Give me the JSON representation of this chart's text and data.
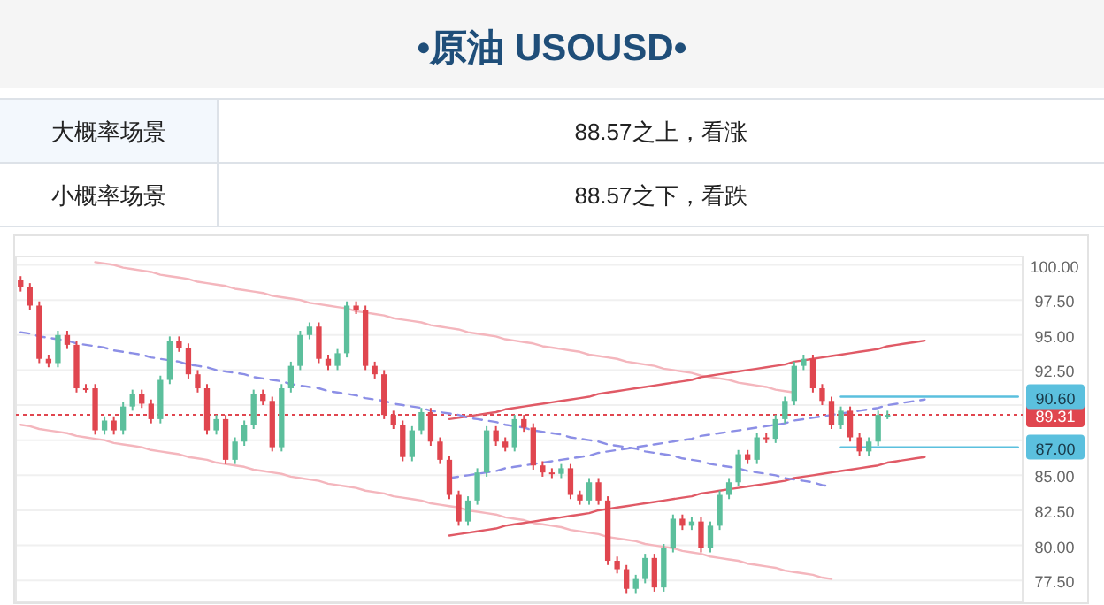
{
  "chart_data": {
    "type": "candlestick",
    "title": "•原油  USOUSD•",
    "annotations": [
      "大概率场景",
      "88.57之上，看涨",
      "小概率场景",
      "88.57之下，看跌"
    ],
    "categories": [
      null,
      null,
      null,
      null,
      null,
      null,
      null,
      null,
      null,
      null,
      null,
      null,
      null,
      null,
      null,
      null,
      null,
      null,
      null,
      null,
      null,
      null,
      null,
      null,
      null,
      null,
      null,
      null,
      null,
      null,
      null,
      null,
      null,
      null,
      null,
      null,
      null,
      null,
      null,
      null,
      null,
      null,
      null,
      null,
      null,
      null,
      null,
      null,
      null,
      null,
      null,
      null,
      null,
      null,
      null,
      null,
      null,
      null,
      null,
      null,
      null,
      null,
      null,
      null,
      null,
      null,
      null,
      null,
      null,
      null,
      null,
      null,
      null,
      null,
      null,
      null,
      null,
      null,
      null,
      null,
      null,
      null,
      null,
      null,
      null,
      null,
      null,
      null,
      null,
      null,
      null,
      null,
      null,
      null,
      null,
      null,
      null,
      null,
      null,
      null,
      null,
      null,
      null,
      null,
      null,
      null,
      null,
      null
    ],
    "ohlc": [
      [
        98.9,
        99.2,
        98.1,
        98.4
      ],
      [
        98.4,
        98.7,
        96.8,
        97.1
      ],
      [
        97.1,
        97.4,
        93.0,
        93.3
      ],
      [
        93.3,
        93.6,
        92.7,
        93.0
      ],
      [
        93.0,
        95.3,
        92.7,
        95.0
      ],
      [
        95.0,
        95.3,
        94.0,
        94.3
      ],
      [
        94.3,
        94.6,
        90.9,
        91.2
      ],
      [
        91.2,
        91.5,
        90.9,
        91.2
      ],
      [
        91.2,
        91.5,
        87.9,
        88.2
      ],
      [
        88.2,
        89.2,
        87.9,
        88.9
      ],
      [
        88.9,
        89.2,
        87.9,
        88.2
      ],
      [
        88.2,
        90.2,
        87.9,
        89.9
      ],
      [
        89.9,
        91.1,
        89.6,
        90.8
      ],
      [
        90.8,
        91.1,
        89.8,
        90.1
      ],
      [
        90.1,
        90.4,
        88.7,
        89.0
      ],
      [
        89.0,
        92.1,
        88.7,
        91.8
      ],
      [
        91.8,
        94.9,
        91.5,
        94.6
      ],
      [
        94.6,
        94.9,
        93.8,
        94.1
      ],
      [
        94.1,
        94.4,
        91.9,
        92.2
      ],
      [
        92.2,
        92.5,
        90.9,
        91.2
      ],
      [
        91.2,
        91.5,
        87.9,
        88.2
      ],
      [
        88.2,
        89.3,
        87.9,
        89.0
      ],
      [
        89.0,
        89.3,
        85.8,
        86.1
      ],
      [
        86.1,
        87.7,
        85.8,
        87.4
      ],
      [
        87.4,
        88.9,
        87.1,
        88.6
      ],
      [
        88.6,
        91.1,
        88.3,
        90.8
      ],
      [
        90.8,
        91.1,
        90.0,
        90.3
      ],
      [
        90.3,
        90.6,
        86.7,
        87.0
      ],
      [
        87.0,
        91.5,
        86.7,
        91.2
      ],
      [
        91.2,
        93.1,
        90.9,
        92.8
      ],
      [
        92.8,
        95.3,
        92.5,
        95.0
      ],
      [
        95.0,
        95.9,
        94.7,
        95.6
      ],
      [
        95.6,
        95.9,
        93.0,
        93.3
      ],
      [
        93.3,
        93.6,
        92.5,
        92.8
      ],
      [
        92.8,
        94.0,
        92.5,
        93.7
      ],
      [
        93.7,
        97.4,
        93.4,
        97.1
      ],
      [
        97.1,
        97.4,
        96.5,
        96.8
      ],
      [
        96.8,
        97.1,
        92.5,
        92.8
      ],
      [
        92.8,
        93.1,
        91.9,
        92.2
      ],
      [
        92.2,
        92.5,
        89.0,
        89.3
      ],
      [
        89.3,
        89.6,
        88.3,
        88.6
      ],
      [
        88.6,
        88.9,
        86.0,
        86.3
      ],
      [
        86.3,
        88.5,
        86.0,
        88.2
      ],
      [
        88.2,
        89.8,
        87.9,
        89.5
      ],
      [
        89.5,
        89.8,
        87.1,
        87.4
      ],
      [
        87.4,
        87.7,
        85.8,
        86.1
      ],
      [
        86.1,
        86.4,
        83.3,
        83.6
      ],
      [
        83.6,
        83.9,
        81.4,
        81.7
      ],
      [
        81.7,
        83.5,
        81.4,
        83.2
      ],
      [
        83.2,
        85.5,
        82.9,
        85.2
      ],
      [
        85.2,
        88.5,
        84.9,
        88.2
      ],
      [
        88.2,
        88.5,
        87.1,
        87.4
      ],
      [
        87.4,
        87.7,
        86.7,
        87.0
      ],
      [
        87.0,
        89.3,
        86.7,
        89.0
      ],
      [
        89.0,
        89.3,
        88.1,
        88.4
      ],
      [
        88.4,
        88.7,
        85.4,
        85.7
      ],
      [
        85.7,
        86.0,
        84.9,
        85.2
      ],
      [
        85.2,
        85.5,
        84.8,
        85.1
      ],
      [
        85.1,
        85.8,
        84.8,
        85.5
      ],
      [
        85.5,
        85.8,
        83.3,
        83.6
      ],
      [
        83.6,
        83.9,
        82.9,
        83.2
      ],
      [
        83.2,
        84.8,
        82.9,
        84.5
      ],
      [
        84.5,
        84.8,
        82.9,
        83.2
      ],
      [
        83.2,
        83.5,
        78.6,
        78.9
      ],
      [
        78.9,
        79.2,
        78.0,
        78.3
      ],
      [
        78.3,
        78.6,
        76.6,
        76.9
      ],
      [
        76.9,
        77.9,
        76.6,
        77.6
      ],
      [
        77.6,
        79.4,
        77.3,
        79.1
      ],
      [
        79.1,
        79.4,
        76.7,
        77.0
      ],
      [
        77.0,
        80.1,
        76.7,
        79.8
      ],
      [
        79.8,
        82.2,
        79.5,
        81.9
      ],
      [
        81.9,
        82.2,
        81.1,
        81.4
      ],
      [
        81.4,
        82.0,
        81.1,
        81.7
      ],
      [
        81.7,
        82.0,
        79.5,
        79.8
      ],
      [
        79.8,
        81.7,
        79.5,
        81.4
      ],
      [
        81.4,
        83.9,
        81.1,
        83.6
      ],
      [
        83.6,
        84.8,
        83.3,
        84.5
      ],
      [
        84.5,
        86.8,
        84.2,
        86.5
      ],
      [
        86.5,
        86.8,
        85.8,
        86.1
      ],
      [
        86.1,
        88.0,
        85.8,
        87.7
      ],
      [
        87.7,
        88.0,
        87.3,
        87.6
      ],
      [
        87.6,
        89.3,
        87.3,
        89.0
      ],
      [
        89.0,
        90.6,
        88.7,
        90.3
      ],
      [
        90.3,
        93.1,
        90.0,
        92.8
      ],
      [
        92.8,
        93.6,
        92.5,
        93.3
      ],
      [
        93.3,
        93.6,
        90.9,
        91.2
      ],
      [
        91.2,
        91.5,
        90.0,
        90.3
      ],
      [
        90.3,
        90.6,
        88.3,
        88.6
      ],
      [
        88.6,
        89.9,
        88.3,
        89.6
      ],
      [
        89.6,
        89.9,
        87.4,
        87.7
      ],
      [
        87.7,
        88.0,
        86.4,
        86.7
      ],
      [
        86.7,
        87.7,
        86.4,
        87.4
      ],
      [
        87.4,
        89.6,
        87.1,
        89.3
      ],
      [
        89.3,
        89.6,
        89.0,
        89.3
      ],
      null,
      null,
      null,
      null,
      null,
      null,
      null,
      null,
      null,
      null,
      null,
      null,
      null,
      null
    ],
    "colors": [
      "#e0464f",
      "#e0464f",
      "#e0464f",
      "#e0464f",
      "#5cbf9c",
      "#e0464f",
      "#e0464f",
      "#e0464f",
      "#e0464f",
      "#5cbf9c",
      "#e0464f",
      "#5cbf9c",
      "#5cbf9c",
      "#e0464f",
      "#e0464f",
      "#5cbf9c",
      "#5cbf9c",
      "#e0464f",
      "#e0464f",
      "#e0464f",
      "#e0464f",
      "#5cbf9c",
      "#e0464f",
      "#5cbf9c",
      "#5cbf9c",
      "#5cbf9c",
      "#e0464f",
      "#e0464f",
      "#5cbf9c",
      "#5cbf9c",
      "#5cbf9c",
      "#5cbf9c",
      "#e0464f",
      "#e0464f",
      "#5cbf9c",
      "#5cbf9c",
      "#e0464f",
      "#e0464f",
      "#e0464f",
      "#e0464f",
      "#e0464f",
      "#e0464f",
      "#5cbf9c",
      "#5cbf9c",
      "#e0464f",
      "#e0464f",
      "#e0464f",
      "#e0464f",
      "#5cbf9c",
      "#5cbf9c",
      "#5cbf9c",
      "#e0464f",
      "#e0464f",
      "#5cbf9c",
      "#e0464f",
      "#e0464f",
      "#e0464f",
      "#e0464f",
      "#5cbf9c",
      "#e0464f",
      "#e0464f",
      "#5cbf9c",
      "#e0464f",
      "#e0464f",
      "#e0464f",
      "#e0464f",
      "#5cbf9c",
      "#5cbf9c",
      "#e0464f",
      "#5cbf9c",
      "#5cbf9c",
      "#e0464f",
      "#5cbf9c",
      "#e0464f",
      "#5cbf9c",
      "#5cbf9c",
      "#5cbf9c",
      "#5cbf9c",
      "#e0464f",
      "#5cbf9c",
      "#e0464f",
      "#5cbf9c",
      "#5cbf9c",
      "#5cbf9c",
      "#5cbf9c",
      "#e0464f",
      "#e0464f",
      "#e0464f",
      "#5cbf9c",
      "#e0464f",
      "#e0464f",
      "#5cbf9c",
      "#5cbf9c",
      "#5cbf9c",
      null,
      null,
      null,
      null,
      null,
      null,
      null,
      null,
      null,
      null,
      null,
      null,
      null,
      null
    ],
    "series": [
      {
        "type": "line",
        "color": "#f4b6bd",
        "line_style": "solid",
        "values": [
          null,
          null,
          null,
          null,
          null,
          null,
          null,
          null,
          100.2,
          100.1,
          100.0,
          99.8,
          99.7,
          99.6,
          99.5,
          99.3,
          99.2,
          99.1,
          99.0,
          98.8,
          98.7,
          98.6,
          98.5,
          98.3,
          98.2,
          98.1,
          98.0,
          97.8,
          97.7,
          97.6,
          97.5,
          97.3,
          97.2,
          97.1,
          97.0,
          96.9,
          96.7,
          96.6,
          96.5,
          96.4,
          96.2,
          96.1,
          96.0,
          95.9,
          95.7,
          95.6,
          95.5,
          95.4,
          95.2,
          95.1,
          95.0,
          94.9,
          94.7,
          94.6,
          94.5,
          94.4,
          94.2,
          94.1,
          94.0,
          93.9,
          93.8,
          93.6,
          93.5,
          93.4,
          93.3,
          93.1,
          93.0,
          92.9,
          92.8,
          92.6,
          92.5,
          92.4,
          92.3,
          92.1,
          92.0,
          91.9,
          91.8,
          91.6,
          91.5,
          91.4,
          91.3,
          91.1,
          91.0,
          90.9,
          null,
          null,
          null,
          null,
          null,
          null,
          null,
          null,
          null,
          null,
          null,
          null,
          null,
          null,
          null,
          null,
          null,
          null,
          null,
          null,
          null,
          null,
          null,
          null
        ]
      },
      {
        "type": "line",
        "color": "#f4b6bd",
        "line_style": "solid",
        "values": [
          88.6,
          88.5,
          88.3,
          88.2,
          88.1,
          88.0,
          87.8,
          87.7,
          87.6,
          87.5,
          87.3,
          87.2,
          87.1,
          87.0,
          86.8,
          86.7,
          86.6,
          86.5,
          86.3,
          86.2,
          86.1,
          85.9,
          85.8,
          85.7,
          85.6,
          85.4,
          85.3,
          85.2,
          85.1,
          84.9,
          84.8,
          84.7,
          84.6,
          84.4,
          84.3,
          84.2,
          84.1,
          83.9,
          83.8,
          83.7,
          83.5,
          83.4,
          83.3,
          83.2,
          83.0,
          82.9,
          82.8,
          82.7,
          82.5,
          82.4,
          82.3,
          82.2,
          82.0,
          81.9,
          81.8,
          81.6,
          81.5,
          81.4,
          81.3,
          81.1,
          81.0,
          80.9,
          80.8,
          80.6,
          80.5,
          80.4,
          80.3,
          80.1,
          80.0,
          79.9,
          79.8,
          79.6,
          79.5,
          79.4,
          79.2,
          79.1,
          79.0,
          78.9,
          78.7,
          78.6,
          78.5,
          78.4,
          78.2,
          78.1,
          78.0,
          77.9,
          77.7,
          77.6,
          null,
          null,
          null,
          null,
          null,
          null,
          null,
          null,
          null,
          null,
          null,
          null,
          null,
          null,
          null,
          null,
          null,
          null,
          null,
          null
        ]
      },
      {
        "type": "line",
        "color": "#e05a66",
        "line_style": "solid",
        "values": [
          null,
          null,
          null,
          null,
          null,
          null,
          null,
          null,
          null,
          null,
          null,
          null,
          null,
          null,
          null,
          null,
          null,
          null,
          null,
          null,
          null,
          null,
          null,
          null,
          null,
          null,
          null,
          null,
          null,
          null,
          null,
          null,
          null,
          null,
          null,
          null,
          null,
          null,
          null,
          null,
          null,
          null,
          null,
          null,
          null,
          null,
          89.0,
          89.1,
          89.2,
          89.3,
          89.4,
          89.5,
          89.7,
          89.8,
          89.9,
          90.0,
          90.1,
          90.2,
          90.3,
          90.4,
          90.5,
          90.6,
          90.8,
          90.9,
          91.0,
          91.1,
          91.2,
          91.3,
          91.4,
          91.5,
          91.6,
          91.7,
          91.8,
          92.0,
          92.1,
          92.2,
          92.3,
          92.4,
          92.5,
          92.6,
          92.7,
          92.8,
          92.9,
          93.1,
          93.2,
          93.3,
          93.4,
          93.5,
          93.6,
          93.7,
          93.8,
          93.9,
          94.0,
          94.2,
          94.3,
          94.4,
          94.5,
          94.6,
          null,
          null,
          null,
          null,
          null,
          null,
          null,
          null,
          null,
          null
        ]
      },
      {
        "type": "line",
        "color": "#e05a66",
        "line_style": "solid",
        "values": [
          null,
          null,
          null,
          null,
          null,
          null,
          null,
          null,
          null,
          null,
          null,
          null,
          null,
          null,
          null,
          null,
          null,
          null,
          null,
          null,
          null,
          null,
          null,
          null,
          null,
          null,
          null,
          null,
          null,
          null,
          null,
          null,
          null,
          null,
          null,
          null,
          null,
          null,
          null,
          null,
          null,
          null,
          null,
          null,
          null,
          null,
          80.7,
          80.8,
          80.9,
          81.0,
          81.1,
          81.2,
          81.4,
          81.5,
          81.6,
          81.7,
          81.8,
          81.9,
          82.0,
          82.1,
          82.2,
          82.3,
          82.5,
          82.6,
          82.7,
          82.8,
          82.9,
          83.0,
          83.1,
          83.2,
          83.3,
          83.4,
          83.5,
          83.7,
          83.8,
          83.9,
          84.0,
          84.1,
          84.2,
          84.3,
          84.4,
          84.5,
          84.6,
          84.8,
          84.9,
          85.0,
          85.1,
          85.2,
          85.3,
          85.4,
          85.5,
          85.6,
          85.7,
          85.9,
          86.0,
          86.1,
          86.2,
          86.3,
          null,
          null,
          null,
          null,
          null,
          null,
          null,
          null,
          null,
          null
        ]
      },
      {
        "type": "line",
        "color": "#8c8fe6",
        "line_style": "dashed",
        "values": [
          95.2,
          95.1,
          94.9,
          94.8,
          94.7,
          94.6,
          94.4,
          94.3,
          94.2,
          94.1,
          93.9,
          93.8,
          93.7,
          93.6,
          93.4,
          93.3,
          93.2,
          93.1,
          92.9,
          92.8,
          92.7,
          92.5,
          92.4,
          92.3,
          92.2,
          92.0,
          91.9,
          91.8,
          91.7,
          91.5,
          91.4,
          91.3,
          91.2,
          91.0,
          90.9,
          90.8,
          90.7,
          90.5,
          90.4,
          90.3,
          90.1,
          90.0,
          89.9,
          89.8,
          89.6,
          89.5,
          89.4,
          89.3,
          89.1,
          89.0,
          88.9,
          88.8,
          88.6,
          88.5,
          88.4,
          88.2,
          88.1,
          88.0,
          87.9,
          87.7,
          87.6,
          87.5,
          87.4,
          87.2,
          87.1,
          87.0,
          86.9,
          86.7,
          86.6,
          86.5,
          86.4,
          86.2,
          86.1,
          86.0,
          85.8,
          85.7,
          85.6,
          85.5,
          85.3,
          85.2,
          85.1,
          85.0,
          84.8,
          84.7,
          84.6,
          84.5,
          84.3,
          84.2,
          null,
          null,
          null,
          null,
          null,
          null,
          null,
          null,
          null,
          null,
          null,
          null,
          null,
          null,
          null,
          null,
          null,
          null,
          null,
          null
        ]
      },
      {
        "type": "line",
        "color": "#8c8fe6",
        "line_style": "dashed",
        "values": [
          null,
          null,
          null,
          null,
          null,
          null,
          null,
          null,
          null,
          null,
          null,
          null,
          null,
          null,
          null,
          null,
          null,
          null,
          null,
          null,
          null,
          null,
          null,
          null,
          null,
          null,
          null,
          null,
          null,
          null,
          null,
          null,
          null,
          null,
          null,
          null,
          null,
          null,
          null,
          null,
          null,
          null,
          null,
          null,
          null,
          null,
          84.8,
          84.9,
          85.0,
          85.1,
          85.2,
          85.3,
          85.5,
          85.6,
          85.7,
          85.8,
          85.9,
          86.0,
          86.1,
          86.2,
          86.3,
          86.4,
          86.6,
          86.7,
          86.8,
          86.9,
          87.0,
          87.1,
          87.2,
          87.3,
          87.4,
          87.5,
          87.6,
          87.8,
          87.9,
          88.0,
          88.1,
          88.2,
          88.3,
          88.4,
          88.5,
          88.6,
          88.7,
          88.9,
          89.0,
          89.1,
          89.2,
          89.3,
          89.4,
          89.5,
          89.6,
          89.7,
          89.8,
          90.0,
          90.1,
          90.2,
          90.3,
          90.4,
          null,
          null,
          null,
          null,
          null,
          null,
          null,
          null,
          null,
          null
        ]
      },
      {
        "type": "line",
        "color": "#5bc0de",
        "line_style": "solid",
        "values": [
          null,
          null,
          null,
          null,
          null,
          null,
          null,
          null,
          null,
          null,
          null,
          null,
          null,
          null,
          null,
          null,
          null,
          null,
          null,
          null,
          null,
          null,
          null,
          null,
          null,
          null,
          null,
          null,
          null,
          null,
          null,
          null,
          null,
          null,
          null,
          null,
          null,
          null,
          null,
          null,
          null,
          null,
          null,
          null,
          null,
          null,
          null,
          null,
          null,
          null,
          null,
          null,
          null,
          null,
          null,
          null,
          null,
          null,
          null,
          null,
          null,
          null,
          null,
          null,
          null,
          null,
          null,
          null,
          null,
          null,
          null,
          null,
          null,
          null,
          null,
          null,
          null,
          null,
          null,
          null,
          null,
          null,
          null,
          null,
          null,
          null,
          null,
          null,
          90.6,
          90.6,
          90.6,
          90.6,
          90.6,
          90.6,
          90.6,
          90.6,
          90.6,
          90.6,
          90.6,
          90.6,
          90.6,
          90.6,
          90.6,
          90.6,
          90.6,
          90.6,
          90.6,
          90.6
        ],
        "value_labels": [
          null,
          null,
          null,
          null,
          null,
          null,
          null,
          null,
          null,
          null,
          null,
          null,
          null,
          null,
          null,
          null,
          null,
          null,
          null,
          null,
          null,
          null,
          null,
          null,
          null,
          null,
          null,
          null,
          null,
          null,
          null,
          null,
          null,
          null,
          null,
          null,
          null,
          null,
          null,
          null,
          null,
          null,
          null,
          null,
          null,
          null,
          null,
          null,
          null,
          null,
          null,
          null,
          null,
          null,
          null,
          null,
          null,
          null,
          null,
          null,
          null,
          null,
          null,
          null,
          null,
          null,
          null,
          null,
          null,
          null,
          null,
          null,
          null,
          null,
          null,
          null,
          null,
          null,
          null,
          null,
          null,
          null,
          null,
          null,
          null,
          null,
          null,
          null,
          null,
          null,
          null,
          null,
          null,
          null,
          null,
          null,
          null,
          null,
          null,
          null,
          null,
          null,
          null,
          null,
          null,
          null,
          null,
          "90.60"
        ]
      },
      {
        "type": "line",
        "color": "#5bc0de",
        "line_style": "solid",
        "values": [
          null,
          null,
          null,
          null,
          null,
          null,
          null,
          null,
          null,
          null,
          null,
          null,
          null,
          null,
          null,
          null,
          null,
          null,
          null,
          null,
          null,
          null,
          null,
          null,
          null,
          null,
          null,
          null,
          null,
          null,
          null,
          null,
          null,
          null,
          null,
          null,
          null,
          null,
          null,
          null,
          null,
          null,
          null,
          null,
          null,
          null,
          null,
          null,
          null,
          null,
          null,
          null,
          null,
          null,
          null,
          null,
          null,
          null,
          null,
          null,
          null,
          null,
          null,
          null,
          null,
          null,
          null,
          null,
          null,
          null,
          null,
          null,
          null,
          null,
          null,
          null,
          null,
          null,
          null,
          null,
          null,
          null,
          null,
          null,
          null,
          null,
          null,
          null,
          87.0,
          87.0,
          87.0,
          87.0,
          87.0,
          87.0,
          87.0,
          87.0,
          87.0,
          87.0,
          87.0,
          87.0,
          87.0,
          87.0,
          87.0,
          87.0,
          87.0,
          87.0,
          87.0,
          87.0
        ],
        "value_labels": [
          null,
          null,
          null,
          null,
          null,
          null,
          null,
          null,
          null,
          null,
          null,
          null,
          null,
          null,
          null,
          null,
          null,
          null,
          null,
          null,
          null,
          null,
          null,
          null,
          null,
          null,
          null,
          null,
          null,
          null,
          null,
          null,
          null,
          null,
          null,
          null,
          null,
          null,
          null,
          null,
          null,
          null,
          null,
          null,
          null,
          null,
          null,
          null,
          null,
          null,
          null,
          null,
          null,
          null,
          null,
          null,
          null,
          null,
          null,
          null,
          null,
          null,
          null,
          null,
          null,
          null,
          null,
          null,
          null,
          null,
          null,
          null,
          null,
          null,
          null,
          null,
          null,
          null,
          null,
          null,
          null,
          null,
          null,
          null,
          null,
          null,
          null,
          null,
          null,
          null,
          null,
          null,
          null,
          null,
          null,
          null,
          null,
          null,
          null,
          null,
          null,
          null,
          null,
          null,
          null,
          null,
          null,
          "87.00"
        ]
      }
    ],
    "ref_lines": [
      {
        "axis": "y",
        "value": 89.31,
        "label": "89.31",
        "color": "#e0464f",
        "line_style": "dotted"
      }
    ],
    "ylim": [
      76.0,
      100.6
    ],
    "yticks": [
      {
        "value": 77.5,
        "label": "77.50"
      },
      {
        "value": 80,
        "label": "80.00"
      },
      {
        "value": 82.5,
        "label": "82.50"
      },
      {
        "value": 85,
        "label": "85.00"
      },
      {
        "value": 87.5,
        "label": null
      },
      {
        "value": 90,
        "label": null
      },
      {
        "value": 92.5,
        "label": "92.50"
      },
      {
        "value": 95,
        "label": "95.00"
      },
      {
        "value": 97.5,
        "label": "97.50"
      },
      {
        "value": 100,
        "label": "100.00"
      }
    ],
    "grid": "y",
    "tick_labels": "y"
  }
}
